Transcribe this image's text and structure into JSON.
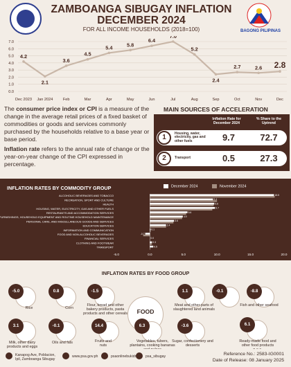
{
  "header": {
    "title_line1": "ZAMBOANGA SIBUGAY INFLATION",
    "title_line2": "DECEMBER 2024",
    "subtitle": "FOR ALL INCOME HOUSEHOLDS (2018=100)",
    "bagong_pilipinas": "BAGONG PILIPINAS"
  },
  "chart_data": [
    {
      "type": "line",
      "categories": [
        "Dec 2023",
        "Jan 2024",
        "Feb",
        "Mar",
        "Apr",
        "May",
        "Jun",
        "Jul",
        "Aug",
        "Sep",
        "Oct",
        "Nov",
        "Dec"
      ],
      "values": [
        4.2,
        2.1,
        3.6,
        4.5,
        5.4,
        5.8,
        6.4,
        7.0,
        5.2,
        2.4,
        2.7,
        2.6,
        2.8
      ],
      "value_labels": [
        "4.2",
        "2.1",
        "3.6",
        "4.5",
        "5.4",
        "5.8",
        "6.4",
        "7.0",
        "5.2",
        "2.4",
        "2.7",
        "2.6",
        "2.8"
      ],
      "yticks": [
        "7.0",
        "6.0",
        "5.0",
        "4.0",
        "3.0",
        "2.0",
        "1.0",
        "0.0"
      ],
      "ylim": [
        0,
        7
      ],
      "grid": true,
      "colors": {
        "line": "#c9b7a8",
        "text": "#4a2a21"
      }
    },
    {
      "type": "bar",
      "orientation": "horizontal",
      "categories": [
        "ALCOHOLIC BEVERAGES AND TOBACCO",
        "RECREATION, SPORT AND CULTURE",
        "HEALTH",
        "HOUSING, WATER, ELECTRICITY, GAS AND OTHER FUELS",
        "RESTAURANTS AND ACCOMMODATION SERVICES",
        "FURNISHINGS, HOUSEHOLD EQUIPMENT AND ROUTINE HOUSEHOLD MAINTENANCE",
        "PERSONAL CARE, AND MISCELLANEOUS GOODS AND SERVICES",
        "EDUCATION SERVICES",
        "INFORMATION AND COMMUNICATION",
        "FOOD AND NON-ALCOHOLIC BEVERAGES",
        "FINANCIAL SERVICES",
        "CLOTHING AND FOOTWEAR",
        "TRANSPORT"
      ],
      "series": [
        {
          "name": "December 2024",
          "values": [
            18.5,
            9.4,
            9.6,
            9.7,
            5.6,
            4.9,
            3.6,
            2.4,
            0.1,
            -0.7,
            0.0,
            0.3,
            0.5
          ]
        },
        {
          "name": "November 2024",
          "values": [
            18.6,
            10.0,
            9.5,
            9.3,
            5.4,
            4.8,
            3.5,
            2.4,
            0.1,
            -1.0,
            0.0,
            0.3,
            0.0
          ]
        }
      ],
      "value_labels_dec": [
        "18.5",
        "9.4",
        "9.6",
        "9.7",
        "5.6",
        "4.9",
        "3.6",
        "2.4",
        "0.1",
        "-0.7",
        "0.0",
        "0.3",
        "0.5"
      ],
      "xticks": [
        "-5.0",
        "0.0",
        "5.0",
        "10.0",
        "15.0",
        "20.0"
      ],
      "xlim": [
        -5,
        20
      ],
      "colors": {
        "dec": "#ffffff",
        "nov": "#a38d80"
      }
    }
  ],
  "description": {
    "p1_bold": "consumer price index or CPI",
    "p1_pre": "The ",
    "p1_post": " is a measure of the change in the average retail prices of a fixed basket of commodities or goods and services commonly purchased by the households relative to a base year or base period.",
    "p2_bold": "Inflation rate",
    "p2_post": " refers to the annual rate of change or the year-on-year change of the CPI expressed in percentage."
  },
  "acceleration": {
    "title": "MAIN SOURCES OF ACCELERATION",
    "col_rate": "Inflation Rate for December 2024",
    "col_share": "% Share to the Uptrend",
    "rows": [
      {
        "num": "1",
        "name": "Housing, water, electricity, gas and other fuels",
        "rate": "9.7",
        "share": "72.7"
      },
      {
        "num": "2",
        "name": "Transport",
        "rate": "0.5",
        "share": "27.3"
      }
    ]
  },
  "commodity": {
    "title": "INFLATION RATES BY COMMODITY GROUP",
    "legend_dec": "December 2024",
    "legend_nov": "November 2024"
  },
  "food": {
    "title": "INFLATION RATES BY FOOD GROUP",
    "center_label": "FOOD",
    "items": [
      {
        "value": "-5.0",
        "label": "Rice",
        "icon": "rice-icon"
      },
      {
        "value": "0.8",
        "label": "Corn",
        "icon": "corn-icon"
      },
      {
        "value": "-1.5",
        "label": "Flour, bread and other bakery products, pasta products and other cereals",
        "icon": "bread-icon"
      },
      {
        "value": "1.1",
        "label": "Meat and other parts of slaughtered land animals",
        "icon": "meat-icon"
      },
      {
        "value": "-0.1",
        "label": "",
        "icon": "chicken-icon"
      },
      {
        "value": "-8.8",
        "label": "Fish and other seafood",
        "icon": "fish-icon"
      },
      {
        "value": "3.1",
        "label": "Milk, other dairy products and eggs",
        "icon": "milk-icon"
      },
      {
        "value": "-0.1",
        "label": "Oils and fats",
        "icon": "oil-icon"
      },
      {
        "value": "14.4",
        "label": "Fruits and nuts",
        "icon": "fruit-icon"
      },
      {
        "value": "6.3",
        "label": "Vegetables, tubers, plantains, cooking bananas and pulses",
        "icon": "vegetable-icon"
      },
      {
        "value": "-3.6",
        "label": "Sugar, confectionery and desserts",
        "icon": "sugar-icon"
      },
      {
        "value": "6.1",
        "label": "Ready-made food and other food products n.e.c.",
        "icon": "ready-food-icon"
      }
    ]
  },
  "footer": {
    "address": "Kanapog Ave, Poblacion, Ipil, Zamboanga Sibugay",
    "website": "www.psa.gov.ph",
    "facebook": "psaonlinebukidnon",
    "twitter": "psa_sibugay",
    "reference": "Reference No.: 2583-IG0001",
    "release": "Date of Release: 08 January 2025"
  }
}
